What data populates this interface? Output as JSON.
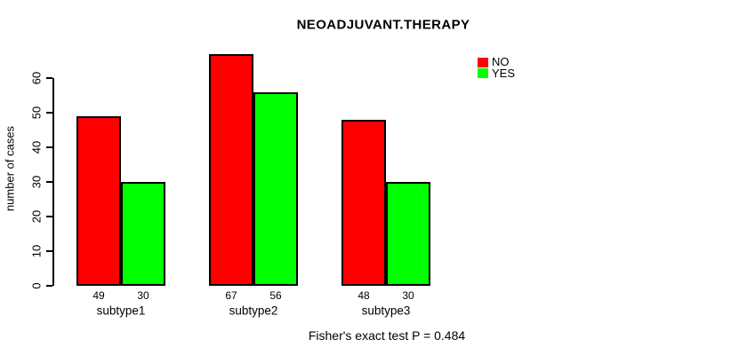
{
  "title": "NEOADJUVANT.THERAPY",
  "note": "Fisher's exact test P = 0.484",
  "colors": {
    "no": "#FF0000",
    "yes": "#00FF00",
    "axis": "#000000",
    "background": "#FFFFFF"
  },
  "chart_data": {
    "type": "bar",
    "title": "NEOADJUVANT.THERAPY",
    "xlabel": "",
    "ylabel": "number of cases",
    "categories": [
      "subtype1",
      "subtype2",
      "subtype3"
    ],
    "series": [
      {
        "name": "NO",
        "color": "#FF0000",
        "values": [
          49,
          67,
          48
        ]
      },
      {
        "name": "YES",
        "color": "#00FF00",
        "values": [
          30,
          56,
          30
        ]
      }
    ],
    "bar_value_labels": [
      [
        49,
        30
      ],
      [
        67,
        56
      ],
      [
        48,
        30
      ]
    ],
    "yticks": [
      0,
      10,
      20,
      30,
      40,
      50,
      60
    ],
    "ylim": [
      0,
      67
    ],
    "grid": false,
    "legend_position": "top-right",
    "annotation": "Fisher's exact test P = 0.484"
  }
}
